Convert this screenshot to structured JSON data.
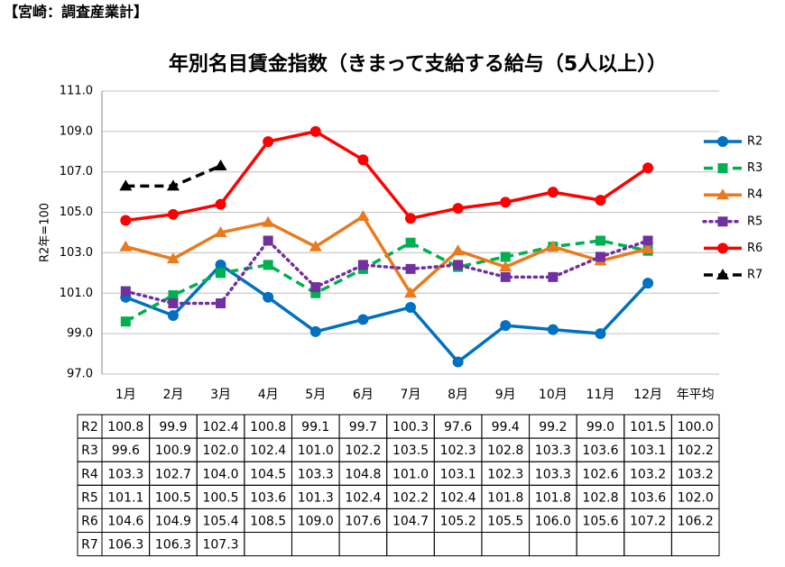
{
  "header": "【宮崎：調査産業計】",
  "chart_data": {
    "type": "line",
    "title": "年別名目賃金指数（きまって支給する給与（5人以上））",
    "y_label": "R2年=100",
    "categories": [
      "1月",
      "2月",
      "3月",
      "4月",
      "5月",
      "6月",
      "7月",
      "8月",
      "9月",
      "10月",
      "11月",
      "12月",
      "年平均"
    ],
    "ylim": [
      97,
      111
    ],
    "yticks": [
      {
        "value": 97,
        "label": "97.0"
      },
      {
        "value": 99,
        "label": "99.0"
      },
      {
        "value": 101,
        "label": "101.0"
      },
      {
        "value": 103,
        "label": "103.0"
      },
      {
        "value": 105,
        "label": "105.0"
      },
      {
        "value": 107,
        "label": "107.0"
      },
      {
        "value": 109,
        "label": "109.0"
      },
      {
        "value": 111,
        "label": "111.0"
      }
    ],
    "grid": true,
    "legend": "right",
    "series": [
      {
        "name": "R2",
        "color": "#0070C0",
        "dash": "solid",
        "marker": "circle",
        "values": [
          100.8,
          99.9,
          102.4,
          100.8,
          99.1,
          99.7,
          100.3,
          97.6,
          99.4,
          99.2,
          99.0,
          101.5,
          100.0
        ],
        "value_labels": [
          "100.8",
          "99.9",
          "102.4",
          "100.8",
          "99.1",
          "99.7",
          "100.3",
          "97.6",
          "99.4",
          "99.2",
          "99.0",
          "101.5",
          "100.0"
        ]
      },
      {
        "name": "R3",
        "color": "#00B050",
        "dash": "dashed",
        "marker": "square",
        "values": [
          99.6,
          100.9,
          102.0,
          102.4,
          101.0,
          102.2,
          103.5,
          102.3,
          102.8,
          103.3,
          103.6,
          103.1,
          102.2
        ],
        "value_labels": [
          "99.6",
          "100.9",
          "102.0",
          "102.4",
          "101.0",
          "102.2",
          "103.5",
          "102.3",
          "102.8",
          "103.3",
          "103.6",
          "103.1",
          "102.2"
        ]
      },
      {
        "name": "R4",
        "color": "#E97A1E",
        "dash": "solid",
        "marker": "triangle",
        "values": [
          103.3,
          102.7,
          104.0,
          104.5,
          103.3,
          104.8,
          101.0,
          103.1,
          102.3,
          103.3,
          102.6,
          103.2,
          103.2
        ],
        "value_labels": [
          "103.3",
          "102.7",
          "104.0",
          "104.5",
          "103.3",
          "104.8",
          "101.0",
          "103.1",
          "102.3",
          "103.3",
          "102.6",
          "103.2",
          "103.2"
        ]
      },
      {
        "name": "R5",
        "color": "#7030A0",
        "dash": "dotted",
        "marker": "square",
        "values": [
          101.1,
          100.5,
          100.5,
          103.6,
          101.3,
          102.4,
          102.2,
          102.4,
          101.8,
          101.8,
          102.8,
          103.6,
          102.0
        ],
        "value_labels": [
          "101.1",
          "100.5",
          "100.5",
          "103.6",
          "101.3",
          "102.4",
          "102.2",
          "102.4",
          "101.8",
          "101.8",
          "102.8",
          "103.6",
          "102.0"
        ]
      },
      {
        "name": "R6",
        "color": "#FF0000",
        "dash": "solid",
        "marker": "circle",
        "values": [
          104.6,
          104.9,
          105.4,
          108.5,
          109.0,
          107.6,
          104.7,
          105.2,
          105.5,
          106.0,
          105.6,
          107.2,
          106.2
        ],
        "value_labels": [
          "104.6",
          "104.9",
          "105.4",
          "108.5",
          "109.0",
          "107.6",
          "104.7",
          "105.2",
          "105.5",
          "106.0",
          "105.6",
          "107.2",
          "106.2"
        ]
      },
      {
        "name": "R7",
        "color": "#000000",
        "dash": "dashed",
        "marker": "triangle",
        "values": [
          106.3,
          106.3,
          107.3,
          null,
          null,
          null,
          null,
          null,
          null,
          null,
          null,
          null,
          null
        ],
        "value_labels": [
          "106.3",
          "106.3",
          "107.3",
          null,
          null,
          null,
          null,
          null,
          null,
          null,
          null,
          null,
          null
        ]
      }
    ]
  }
}
